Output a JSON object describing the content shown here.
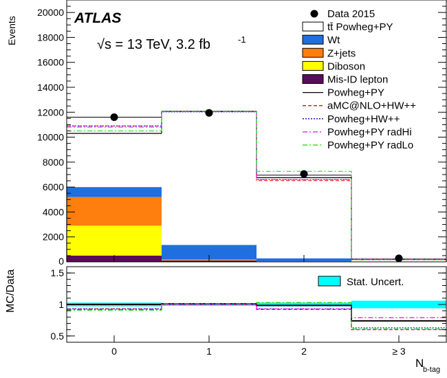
{
  "chart_data": {
    "type": "bar",
    "experiment": "ATLAS",
    "energy_label": "√s = 13 TeV, 3.2 fb",
    "energy_sup": "-1",
    "categories": [
      "0",
      "1",
      "2",
      "≥ 3"
    ],
    "xlabel": "N",
    "xlabel_sub": "b-tag",
    "ylabel_top": "Events",
    "ylabel_ratio": "MC/Data",
    "ylim_top": [
      0,
      21000
    ],
    "ylim_ratio": [
      0.4,
      1.6
    ],
    "yticks_top": [
      "2000",
      "4000",
      "6000",
      "8000",
      "10000",
      "12000",
      "14000",
      "16000",
      "18000",
      "20000"
    ],
    "yticks_ratio": [
      "0.5",
      "1",
      "1.5"
    ],
    "yticks_top_values": [
      2000,
      4000,
      6000,
      8000,
      10000,
      12000,
      14000,
      16000,
      18000,
      20000
    ],
    "yticks_ratio_values": [
      0.5,
      1.0,
      1.5
    ],
    "y_zero_label": "0",
    "data": {
      "name": "Data 2015",
      "values": [
        11600,
        11950,
        7050,
        280
      ]
    },
    "stack": [
      {
        "name": "Mis-ID lepton",
        "color": "#5c0a5c",
        "values": [
          500,
          120,
          30,
          5
        ]
      },
      {
        "name": "Diboson",
        "color": "#ffff00",
        "values": [
          2400,
          30,
          5,
          1
        ]
      },
      {
        "name": "Z+jets",
        "color": "#ff7f0e",
        "values": [
          2300,
          30,
          5,
          1
        ]
      },
      {
        "name": "Wt",
        "color": "#1f6fe0",
        "values": [
          800,
          1180,
          240,
          20
        ]
      },
      {
        "name": "tt̄ Powheg+PY",
        "color": "#ffffff",
        "values": [
          4300,
          10690,
          6470,
          193
        ]
      }
    ],
    "variations": [
      {
        "name": "Powheg+PY",
        "color": "#000000",
        "dash": "",
        "values": [
          11600,
          12080,
          6950,
          210
        ]
      },
      {
        "name": "aMC@NLO+HW++",
        "color": "#ff0000",
        "dash": "5,3",
        "values": [
          10900,
          12040,
          6520,
          170
        ]
      },
      {
        "name": "Powheg+HW++",
        "color": "#0000cc",
        "dash": "2,2",
        "values": [
          10900,
          12020,
          6600,
          180
        ]
      },
      {
        "name": "Powheg+PY radHi",
        "color": "#ff00ff",
        "dash": "7,3,2,3",
        "values": [
          10800,
          12050,
          6600,
          210
        ]
      },
      {
        "name": "Powheg+PY radLo",
        "color": "#00dd00",
        "dash": "7,3,2,3",
        "values": [
          10500,
          12060,
          7260,
          170
        ]
      }
    ],
    "ratio": {
      "stat_uncert": {
        "name": "Stat. Uncert.",
        "color": "#00ffff",
        "halfwidth": [
          0.03,
          0.02,
          0.03,
          0.06
        ]
      },
      "series": [
        {
          "name": "Powheg+PY",
          "values": [
            1.0,
            1.01,
            0.985,
            0.74
          ]
        },
        {
          "name": "aMC@NLO+HW++",
          "values": [
            0.93,
            1.0,
            0.92,
            0.6
          ]
        },
        {
          "name": "Powheg+HW++",
          "values": [
            0.93,
            1.0,
            0.93,
            0.63
          ]
        },
        {
          "name": "Powheg+PY radHi",
          "values": [
            0.92,
            1.0,
            0.93,
            0.79
          ]
        },
        {
          "name": "Powheg+PY radLo",
          "values": [
            0.91,
            1.01,
            1.03,
            0.61
          ]
        }
      ]
    },
    "legend_position": "top-right"
  }
}
